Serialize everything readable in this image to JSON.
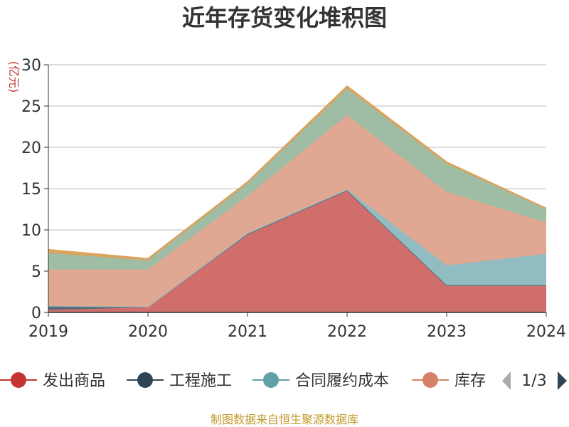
{
  "chart_data": {
    "type": "area",
    "stacked": true,
    "title": "近年存货变化堆积图",
    "ylabel": "(亿元)",
    "x": [
      "2019",
      "2020",
      "2021",
      "2022",
      "2023",
      "2024"
    ],
    "ylim": [
      0,
      30
    ],
    "yticks": [
      "0",
      "5",
      "10",
      "15",
      "20",
      "25",
      "30"
    ],
    "grid": true,
    "series": [
      {
        "name": "发出商品",
        "color": "#d06e6c",
        "values": [
          0.3,
          0.6,
          9.5,
          14.8,
          3.3,
          3.3
        ]
      },
      {
        "name": "工程施工",
        "color": "#5b6a7a",
        "values": [
          0.5,
          0.1,
          0.0,
          0.0,
          0.0,
          0.0
        ]
      },
      {
        "name": "合同履约成本",
        "color": "#91bcc2",
        "values": [
          0.0,
          0.0,
          0.1,
          0.1,
          2.4,
          3.8
        ]
      },
      {
        "name": "库存",
        "color": "#e0a892",
        "values": [
          4.4,
          4.5,
          4.5,
          9.0,
          8.9,
          3.8
        ]
      },
      {
        "name": "",
        "color": "#9fbca5",
        "values": [
          2.0,
          1.1,
          1.5,
          3.2,
          3.4,
          1.6
        ]
      },
      {
        "name": "",
        "color": "#dba35e",
        "values": [
          0.4,
          0.2,
          0.2,
          0.3,
          0.2,
          0.1
        ]
      }
    ],
    "legend_colors": [
      "#c23531",
      "#2f4554",
      "#61a0a8",
      "#d48265"
    ],
    "legend_position": "bottom",
    "legend_page": "1/3"
  },
  "source_note": "制图数据来自恒生聚源数据库"
}
